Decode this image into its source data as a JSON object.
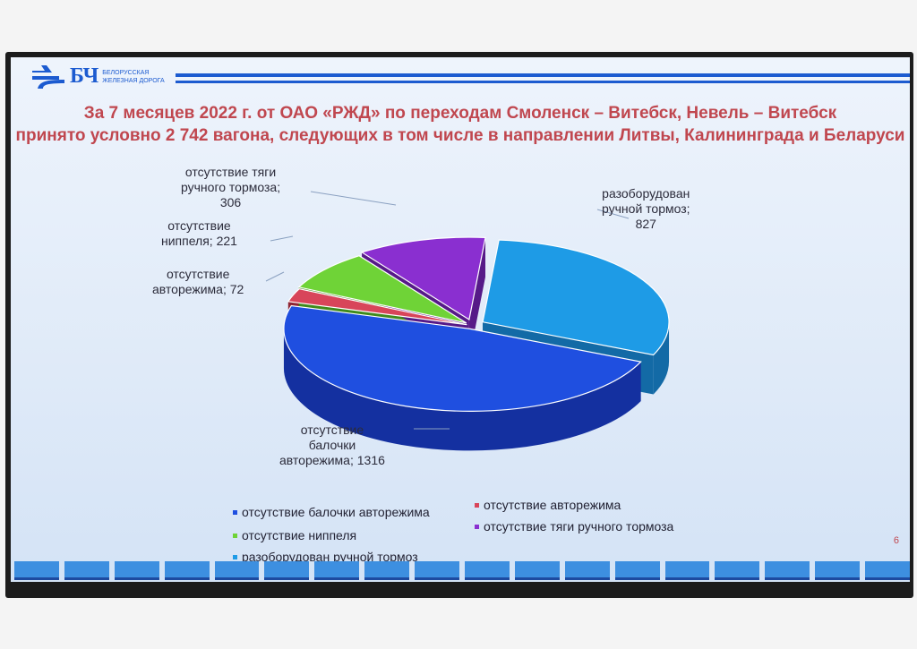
{
  "header": {
    "logo_abbr": "БЧ",
    "logo_line1": "БЕЛОРУССКАЯ",
    "logo_line2": "ЖЕЛЕЗНАЯ ДОРОГА",
    "brand_color": "#1c5bd0"
  },
  "title_line1": "За 7 месяцев 2022 г. от ОАО «РЖД» по переходам Смоленск – Витебск, Невель – Витебск",
  "title_line2": "принято условно 2 742 вагона, следующих в том числе в направлении Литвы, Калининграда и Беларуси",
  "page_number": "6",
  "chart_data": {
    "type": "pie",
    "style": "3d-exploded",
    "title": "",
    "legend_position": "bottom",
    "slices": [
      {
        "name": "разоборудован ручной тормоз",
        "value": 827,
        "data_label": [
          "разоборудован",
          "ручной тормоз;",
          "827"
        ],
        "color": "#1e9be6",
        "side": "#136aa6"
      },
      {
        "name": "отсутствие балочки авторежима",
        "value": 1316,
        "data_label": [
          "отсутствие",
          "балочки",
          "авторежима; 1316"
        ],
        "color": "#1f4fe0",
        "side": "#1430a0"
      },
      {
        "name": "отсутствие авторежима",
        "value": 72,
        "data_label": [
          "отсутствие",
          "авторежима; 72"
        ],
        "color": "#d8455a",
        "side": "#8f2434"
      },
      {
        "name": "отсутствие ниппеля",
        "value": 221,
        "data_label": [
          "отсутствие",
          "ниппеля; 221"
        ],
        "color": "#6fd337",
        "side": "#3f8a1c"
      },
      {
        "name": "отсутствие тяги ручного тормоза",
        "value": 306,
        "data_label": [
          "отсутствие тяги",
          "ручного тормоза;",
          "306"
        ],
        "color": "#8a2fd0",
        "side": "#561a88"
      }
    ]
  }
}
